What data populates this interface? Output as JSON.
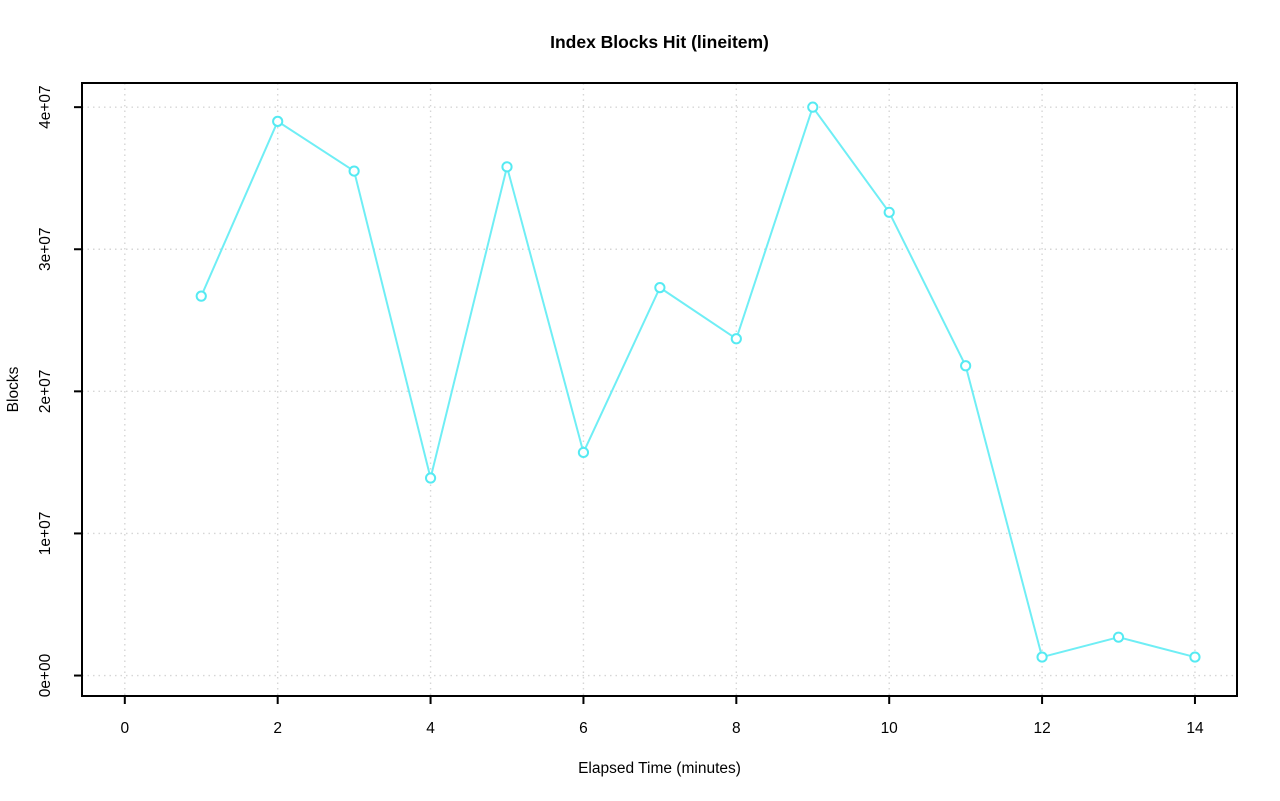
{
  "figure": {
    "background": "#ffffff"
  },
  "chart_data": {
    "type": "line",
    "title": "Index Blocks Hit (lineitem)",
    "xlabel": "Elapsed Time (minutes)",
    "ylabel": "Blocks",
    "series_name": "index-blocks-hit",
    "x": [
      1,
      2,
      3,
      4,
      5,
      6,
      7,
      8,
      9,
      10,
      11,
      12,
      13,
      14
    ],
    "y": [
      26700000,
      39000000,
      35500000,
      13900000,
      35800000,
      15700000,
      27300000,
      23700000,
      40000000,
      32600000,
      21800000,
      1300000,
      2700000,
      1300000
    ],
    "x_ticks": [
      0,
      2,
      4,
      6,
      8,
      10,
      12,
      14
    ],
    "y_ticks": [
      {
        "value": 0,
        "label": "0e+00"
      },
      {
        "value": 10000000,
        "label": "1e+07"
      },
      {
        "value": 20000000,
        "label": "2e+07"
      },
      {
        "value": 30000000,
        "label": "3e+07"
      },
      {
        "value": 40000000,
        "label": "4e+07"
      }
    ],
    "xlim": [
      -0.56,
      14.55
    ],
    "ylim": [
      -1440000,
      41700000
    ],
    "grid": true,
    "grid_style": "dotted",
    "legend_position": "none",
    "marker": "open-circle",
    "colors": {
      "line": "#6feef5",
      "marker": "#55eaf2",
      "grid": "#d6d6d6",
      "axis": "#000000",
      "text": "#000000",
      "background": "#ffffff"
    }
  }
}
